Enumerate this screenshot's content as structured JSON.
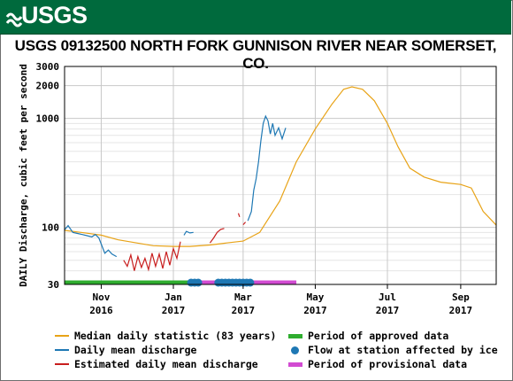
{
  "header": {
    "logo_text": "USGS",
    "brand_color": "#006a3d"
  },
  "chart_data": {
    "type": "line",
    "title": "USGS 09132500 NORTH FORK GUNNISON RIVER NEAR SOMERSET, CO.",
    "ylabel": "DAILY Discharge, cubic feet per second",
    "yscale": "log",
    "ylim": [
      30,
      3000
    ],
    "yticks": [
      30,
      100,
      1000,
      2000,
      3000
    ],
    "ytick_labels": [
      "30",
      "100",
      "1000",
      "2000",
      "3000"
    ],
    "xlim": [
      "2016-10-01",
      "2017-10-01"
    ],
    "xticks": [
      {
        "date": "2016-11-01",
        "label": [
          "Nov",
          "2016"
        ]
      },
      {
        "date": "2017-01-01",
        "label": [
          "Jan",
          "2017"
        ]
      },
      {
        "date": "2017-03-01",
        "label": [
          "Mar",
          "2017"
        ]
      },
      {
        "date": "2017-05-01",
        "label": [
          "May",
          "2017"
        ]
      },
      {
        "date": "2017-07-01",
        "label": [
          "Jul",
          "2017"
        ]
      },
      {
        "date": "2017-09-01",
        "label": [
          "Sep",
          "2017"
        ]
      }
    ],
    "grid": true,
    "series": [
      {
        "name": "Median daily statistic (83 years)",
        "color": "#e8a317",
        "points": [
          [
            "2016-10-01",
            94
          ],
          [
            "2016-10-15",
            90
          ],
          [
            "2016-11-01",
            85
          ],
          [
            "2016-11-15",
            77
          ],
          [
            "2016-12-01",
            72
          ],
          [
            "2016-12-15",
            68
          ],
          [
            "2017-01-01",
            67
          ],
          [
            "2017-01-15",
            67
          ],
          [
            "2017-02-01",
            69
          ],
          [
            "2017-02-15",
            72
          ],
          [
            "2017-03-01",
            75
          ],
          [
            "2017-03-15",
            90
          ],
          [
            "2017-04-01",
            175
          ],
          [
            "2017-04-15",
            400
          ],
          [
            "2017-05-01",
            800
          ],
          [
            "2017-05-15",
            1350
          ],
          [
            "2017-05-25",
            1850
          ],
          [
            "2017-06-01",
            1950
          ],
          [
            "2017-06-10",
            1850
          ],
          [
            "2017-06-20",
            1450
          ],
          [
            "2017-07-01",
            900
          ],
          [
            "2017-07-10",
            550
          ],
          [
            "2017-07-20",
            350
          ],
          [
            "2017-08-01",
            290
          ],
          [
            "2017-08-15",
            260
          ],
          [
            "2017-09-01",
            248
          ],
          [
            "2017-09-10",
            230
          ],
          [
            "2017-09-20",
            140
          ],
          [
            "2017-10-01",
            105
          ]
        ]
      },
      {
        "name": "Daily mean discharge",
        "color": "#1e78b4",
        "segments": [
          [
            [
              "2016-10-01",
              95
            ],
            [
              "2016-10-04",
              104
            ],
            [
              "2016-10-08",
              90
            ],
            [
              "2016-10-12",
              88
            ],
            [
              "2016-10-16",
              86
            ],
            [
              "2016-10-20",
              84
            ],
            [
              "2016-10-24",
              82
            ],
            [
              "2016-10-27",
              86
            ],
            [
              "2016-10-30",
              80
            ],
            [
              "2016-11-02",
              66
            ],
            [
              "2016-11-04",
              58
            ],
            [
              "2016-11-07",
              62
            ],
            [
              "2016-11-10",
              57
            ],
            [
              "2016-11-14",
              54
            ]
          ],
          [
            [
              "2017-01-10",
              85
            ],
            [
              "2017-01-12",
              92
            ],
            [
              "2017-01-15",
              89
            ],
            [
              "2017-01-18",
              90
            ]
          ],
          [
            [
              "2017-03-05",
              115
            ],
            [
              "2017-03-08",
              140
            ],
            [
              "2017-03-10",
              220
            ],
            [
              "2017-03-12",
              280
            ],
            [
              "2017-03-14",
              400
            ],
            [
              "2017-03-16",
              620
            ],
            [
              "2017-03-18",
              900
            ],
            [
              "2017-03-20",
              1050
            ],
            [
              "2017-03-22",
              950
            ],
            [
              "2017-03-24",
              720
            ],
            [
              "2017-03-26",
              900
            ],
            [
              "2017-03-28",
              700
            ],
            [
              "2017-03-31",
              820
            ],
            [
              "2017-04-03",
              650
            ],
            [
              "2017-04-06",
              820
            ]
          ]
        ]
      },
      {
        "name": "Estimated daily mean discharge",
        "color": "#c81e1e",
        "segments": [
          [
            [
              "2016-11-20",
              50
            ],
            [
              "2016-11-23",
              44
            ],
            [
              "2016-11-26",
              56
            ],
            [
              "2016-11-29",
              40
            ],
            [
              "2016-12-02",
              54
            ],
            [
              "2016-12-05",
              43
            ],
            [
              "2016-12-08",
              52
            ],
            [
              "2016-12-11",
              41
            ],
            [
              "2016-12-14",
              58
            ],
            [
              "2016-12-17",
              44
            ],
            [
              "2016-12-20",
              57
            ],
            [
              "2016-12-23",
              42
            ],
            [
              "2016-12-26",
              60
            ],
            [
              "2016-12-29",
              45
            ],
            [
              "2017-01-01",
              64
            ],
            [
              "2017-01-04",
              52
            ],
            [
              "2017-01-07",
              74
            ]
          ],
          [
            [
              "2017-02-01",
              72
            ],
            [
              "2017-02-04",
              80
            ],
            [
              "2017-02-07",
              90
            ],
            [
              "2017-02-10",
              96
            ],
            [
              "2017-02-13",
              98
            ]
          ],
          [
            [
              "2017-02-25",
              135
            ],
            [
              "2017-02-26",
              125
            ]
          ],
          [
            [
              "2017-03-01",
              106
            ],
            [
              "2017-03-03",
              112
            ]
          ]
        ]
      }
    ],
    "bars": [
      {
        "name": "Period of approved data",
        "color": "#2fad2f",
        "from": "2016-10-01",
        "to": "2017-01-15",
        "y": 30
      },
      {
        "name": "Period of provisional data",
        "color": "#d24bd2",
        "from": "2017-01-15",
        "to": "2017-04-15",
        "y": 30
      }
    ],
    "ice": {
      "name": "Flow at station affected by ice",
      "color": "#1e78b4",
      "dates": [
        "2017-01-16",
        "2017-01-19",
        "2017-01-22",
        "2017-02-08",
        "2017-02-11",
        "2017-02-14",
        "2017-02-17",
        "2017-02-20",
        "2017-02-23",
        "2017-02-26",
        "2017-03-01",
        "2017-03-04",
        "2017-03-07"
      ]
    }
  },
  "legend": {
    "median": "Median daily statistic (83 years)",
    "daily": "Daily mean discharge",
    "estimated": "Estimated daily mean discharge",
    "approved": "Period of approved data",
    "ice": "Flow at station affected by ice",
    "provisional": "Period of provisional data"
  }
}
